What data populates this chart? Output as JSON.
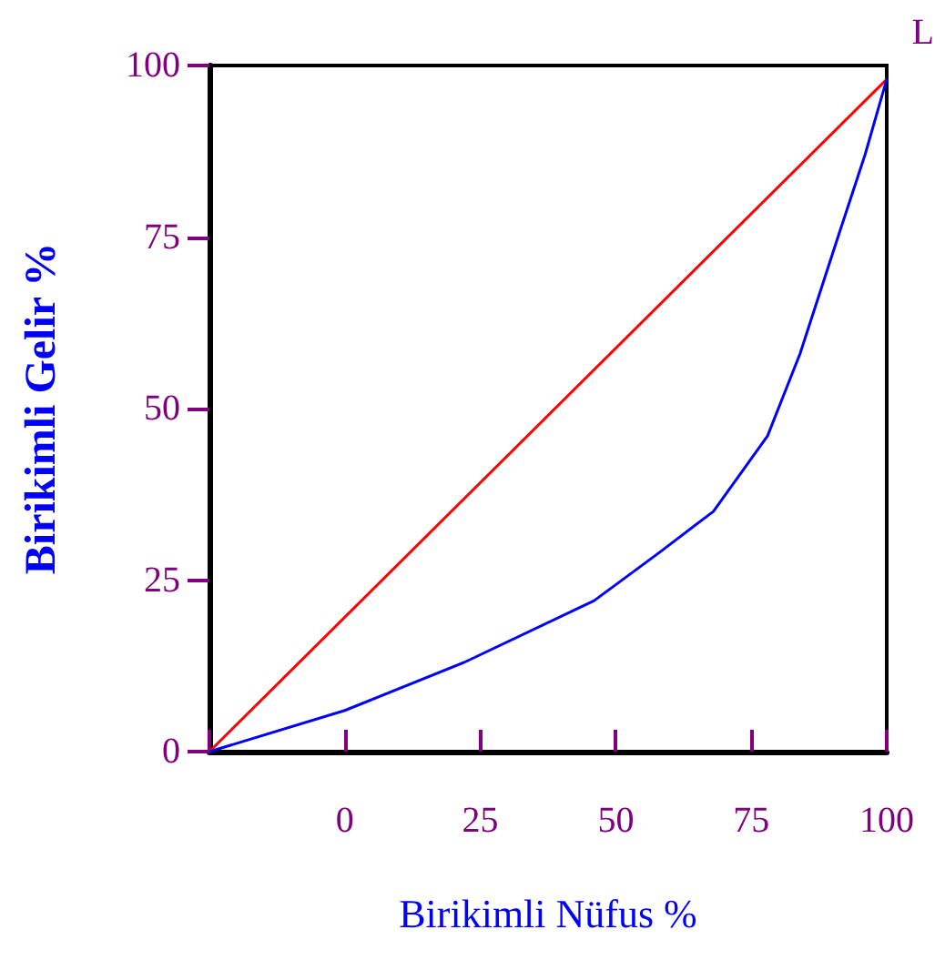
{
  "chart_data": {
    "type": "line",
    "xlabel": "Birikimli Nüfus %",
    "ylabel": "Birikimli Gelir %",
    "xlim": [
      -25,
      100
    ],
    "xticks": [
      {
        "value": -25,
        "label": null
      },
      0,
      25,
      50,
      75,
      100
    ],
    "ylim": [
      0,
      100
    ],
    "yticks": [
      0,
      25,
      50,
      75,
      100
    ],
    "grid": false,
    "marker": "none",
    "line_style": "solid",
    "annotations": [
      "L"
    ],
    "series": [
      {
        "color": "#ff0000",
        "x": [
          -25,
          100
        ],
        "values": [
          0,
          98
        ]
      },
      {
        "color": "#0000ff",
        "x": [
          -25,
          0,
          22,
          46,
          58,
          68,
          78,
          84,
          91,
          96,
          100
        ],
        "values": [
          0,
          6,
          13,
          22,
          29,
          35,
          46,
          58,
          75,
          87,
          98
        ]
      }
    ]
  }
}
